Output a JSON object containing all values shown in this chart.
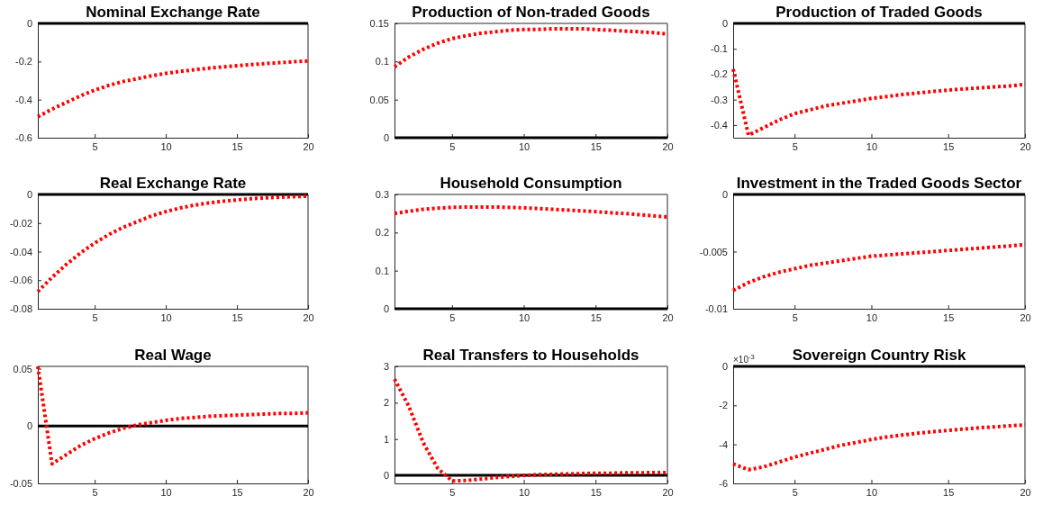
{
  "chart_data": [
    {
      "type": "line",
      "title": "Nominal Exchange Rate",
      "x": [
        1,
        2,
        3,
        4,
        5,
        6,
        7,
        8,
        9,
        10,
        11,
        12,
        13,
        14,
        15,
        16,
        17,
        18,
        19,
        20
      ],
      "xlim": [
        1,
        20
      ],
      "xticks": [
        5,
        10,
        15,
        20
      ],
      "ylim": [
        -0.6,
        0
      ],
      "yticks": [
        {
          "value": -0.6,
          "label": "-0.6"
        },
        {
          "value": -0.4,
          "label": "-0.4"
        },
        {
          "value": -0.2,
          "label": "-0.2"
        },
        0
      ],
      "grid": false,
      "marker": "none",
      "line_style": "dotted",
      "series": [
        {
          "color": "#ff0000",
          "values": [
            -0.49,
            -0.45,
            -0.415,
            -0.38,
            -0.35,
            -0.325,
            -0.305,
            -0.29,
            -0.275,
            -0.262,
            -0.252,
            -0.243,
            -0.235,
            -0.228,
            -0.222,
            -0.216,
            -0.211,
            -0.206,
            -0.201,
            -0.197
          ]
        }
      ],
      "ref_lines": [
        {
          "axis": "y",
          "value": 0,
          "color": "#000000",
          "line_style": "solid"
        }
      ]
    },
    {
      "type": "line",
      "title": "Production of Non-traded Goods",
      "x": [
        1,
        2,
        3,
        4,
        5,
        6,
        7,
        8,
        9,
        10,
        11,
        12,
        13,
        14,
        15,
        16,
        17,
        18,
        19,
        20
      ],
      "xlim": [
        1,
        20
      ],
      "xticks": [
        5,
        10,
        15,
        20
      ],
      "ylim": [
        0,
        0.15
      ],
      "yticks": [
        0,
        0.05,
        0.1,
        0.15
      ],
      "grid": false,
      "marker": "none",
      "line_style": "dotted",
      "series": [
        {
          "color": "#ff0000",
          "values": [
            0.093,
            0.106,
            0.116,
            0.124,
            0.13,
            0.134,
            0.137,
            0.139,
            0.141,
            0.142,
            0.142,
            0.143,
            0.143,
            0.143,
            0.142,
            0.141,
            0.14,
            0.139,
            0.138,
            0.136
          ]
        }
      ],
      "ref_lines": [
        {
          "axis": "y",
          "value": 0,
          "color": "#000000",
          "line_style": "solid"
        }
      ]
    },
    {
      "type": "line",
      "title": "Production of Traded Goods",
      "x": [
        1,
        2,
        3,
        4,
        5,
        6,
        7,
        8,
        9,
        10,
        11,
        12,
        13,
        14,
        15,
        16,
        17,
        18,
        19,
        20
      ],
      "xlim": [
        1,
        20
      ],
      "xticks": [
        5,
        10,
        15,
        20
      ],
      "ylim": [
        -0.45,
        0
      ],
      "yticks": [
        {
          "value": -0.4,
          "label": "-0.4"
        },
        {
          "value": -0.3,
          "label": "-0.3"
        },
        {
          "value": -0.2,
          "label": "-0.2"
        },
        {
          "value": -0.1,
          "label": "-0.1"
        },
        0
      ],
      "grid": false,
      "marker": "none",
      "line_style": "dotted",
      "series": [
        {
          "color": "#ff0000",
          "values": [
            -0.18,
            -0.44,
            -0.41,
            -0.38,
            -0.355,
            -0.34,
            -0.325,
            -0.315,
            -0.305,
            -0.295,
            -0.288,
            -0.28,
            -0.274,
            -0.268,
            -0.263,
            -0.258,
            -0.254,
            -0.25,
            -0.246,
            -0.24
          ]
        }
      ],
      "ref_lines": [
        {
          "axis": "y",
          "value": 0,
          "color": "#000000",
          "line_style": "solid"
        }
      ]
    },
    {
      "type": "line",
      "title": "Real Exchange Rate",
      "x": [
        1,
        2,
        3,
        4,
        5,
        6,
        7,
        8,
        9,
        10,
        11,
        12,
        13,
        14,
        15,
        16,
        17,
        18,
        19,
        20
      ],
      "xlim": [
        1,
        20
      ],
      "xticks": [
        5,
        10,
        15,
        20
      ],
      "ylim": [
        -0.08,
        0
      ],
      "yticks": [
        {
          "value": -0.08,
          "label": "-0.08"
        },
        {
          "value": -0.06,
          "label": "-0.06"
        },
        {
          "value": -0.04,
          "label": "-0.04"
        },
        {
          "value": -0.02,
          "label": "-0.02"
        },
        0
      ],
      "grid": false,
      "marker": "none",
      "line_style": "dotted",
      "series": [
        {
          "color": "#ff0000",
          "values": [
            -0.068,
            -0.058,
            -0.049,
            -0.041,
            -0.034,
            -0.028,
            -0.023,
            -0.019,
            -0.015,
            -0.012,
            -0.0095,
            -0.0075,
            -0.006,
            -0.0048,
            -0.0038,
            -0.003,
            -0.0024,
            -0.0019,
            -0.0015,
            -0.0012
          ]
        }
      ],
      "ref_lines": [
        {
          "axis": "y",
          "value": 0,
          "color": "#000000",
          "line_style": "solid"
        }
      ]
    },
    {
      "type": "line",
      "title": "Household Consumption",
      "x": [
        1,
        2,
        3,
        4,
        5,
        6,
        7,
        8,
        9,
        10,
        11,
        12,
        13,
        14,
        15,
        16,
        17,
        18,
        19,
        20
      ],
      "xlim": [
        1,
        20
      ],
      "xticks": [
        5,
        10,
        15,
        20
      ],
      "ylim": [
        0,
        0.3
      ],
      "yticks": [
        0,
        0.1,
        0.2,
        0.3
      ],
      "grid": false,
      "marker": "none",
      "line_style": "dotted",
      "series": [
        {
          "color": "#ff0000",
          "values": [
            0.25,
            0.256,
            0.261,
            0.264,
            0.266,
            0.267,
            0.267,
            0.267,
            0.266,
            0.265,
            0.263,
            0.261,
            0.259,
            0.257,
            0.255,
            0.252,
            0.25,
            0.247,
            0.244,
            0.241
          ]
        }
      ],
      "ref_lines": [
        {
          "axis": "y",
          "value": 0,
          "color": "#000000",
          "line_style": "solid"
        }
      ]
    },
    {
      "type": "line",
      "title": "Investment in the Traded Goods Sector",
      "x": [
        1,
        2,
        3,
        4,
        5,
        6,
        7,
        8,
        9,
        10,
        11,
        12,
        13,
        14,
        15,
        16,
        17,
        18,
        19,
        20
      ],
      "xlim": [
        1,
        20
      ],
      "xticks": [
        5,
        10,
        15,
        20
      ],
      "ylim": [
        -0.01,
        0
      ],
      "yticks": [
        {
          "value": -0.01,
          "label": "-0.01"
        },
        {
          "value": -0.005,
          "label": "-0.005"
        },
        0
      ],
      "grid": false,
      "marker": "none",
      "line_style": "dotted",
      "series": [
        {
          "color": "#ff0000",
          "values": [
            -0.0084,
            -0.0077,
            -0.0072,
            -0.0068,
            -0.0065,
            -0.0062,
            -0.006,
            -0.0058,
            -0.0056,
            -0.0054,
            -0.0053,
            -0.0052,
            -0.0051,
            -0.005,
            -0.0049,
            -0.0048,
            -0.0047,
            -0.0046,
            -0.0045,
            -0.0044
          ]
        }
      ],
      "ref_lines": [
        {
          "axis": "y",
          "value": 0,
          "color": "#000000",
          "line_style": "solid"
        }
      ]
    },
    {
      "type": "line",
      "title": "Real Wage",
      "x": [
        1,
        2,
        3,
        4,
        5,
        6,
        7,
        8,
        9,
        10,
        11,
        12,
        13,
        14,
        15,
        16,
        17,
        18,
        19,
        20
      ],
      "xlim": [
        1,
        20
      ],
      "xticks": [
        5,
        10,
        15,
        20
      ],
      "ylim": [
        -0.05,
        0.052
      ],
      "yticks": [
        {
          "value": -0.05,
          "label": "-0.05"
        },
        0,
        0.05
      ],
      "grid": false,
      "marker": "none",
      "line_style": "dotted",
      "series": [
        {
          "color": "#ff0000",
          "values": [
            0.052,
            -0.033,
            -0.025,
            -0.017,
            -0.011,
            -0.006,
            -0.002,
            0.001,
            0.003,
            0.005,
            0.0065,
            0.0075,
            0.0085,
            0.009,
            0.0095,
            0.01,
            0.0105,
            0.011,
            0.011,
            0.0115
          ]
        }
      ],
      "ref_lines": [
        {
          "axis": "y",
          "value": 0,
          "color": "#000000",
          "line_style": "solid"
        }
      ]
    },
    {
      "type": "line",
      "title": "Real Transfers to Households",
      "x": [
        1,
        2,
        3,
        4,
        5,
        6,
        7,
        8,
        9,
        10,
        11,
        12,
        13,
        14,
        15,
        16,
        17,
        18,
        19,
        20
      ],
      "xlim": [
        1,
        20
      ],
      "xticks": [
        5,
        10,
        15,
        20
      ],
      "ylim": [
        -0.22,
        3
      ],
      "yticks": [
        0,
        1,
        2,
        3
      ],
      "grid": false,
      "marker": "none",
      "line_style": "dotted",
      "series": [
        {
          "color": "#ff0000",
          "values": [
            2.65,
            1.9,
            0.9,
            0.2,
            -0.15,
            -0.14,
            -0.1,
            -0.06,
            -0.03,
            0,
            0.02,
            0.03,
            0.04,
            0.05,
            0.06,
            0.06,
            0.07,
            0.07,
            0.08,
            0.08
          ]
        }
      ],
      "ref_lines": [
        {
          "axis": "y",
          "value": 0,
          "color": "#000000",
          "line_style": "solid"
        }
      ]
    },
    {
      "type": "line",
      "title": "Sovereign Country Risk",
      "annotations": [
        "×10$^{-3}$"
      ],
      "x": [
        1,
        2,
        3,
        4,
        5,
        6,
        7,
        8,
        9,
        10,
        11,
        12,
        13,
        14,
        15,
        16,
        17,
        18,
        19,
        20
      ],
      "xlim": [
        1,
        20
      ],
      "xticks": [
        5,
        10,
        15,
        20
      ],
      "ylim": [
        -6,
        0
      ],
      "yticks": [
        -6,
        -4,
        -2,
        0
      ],
      "grid": false,
      "marker": "none",
      "line_style": "dotted",
      "series": [
        {
          "color": "#ff0000",
          "values": [
            -5.0,
            -5.3,
            -5.15,
            -4.9,
            -4.65,
            -4.45,
            -4.25,
            -4.05,
            -3.9,
            -3.75,
            -3.62,
            -3.52,
            -3.43,
            -3.35,
            -3.28,
            -3.21,
            -3.15,
            -3.1,
            -3.05,
            -3.0
          ]
        }
      ],
      "ref_lines": [
        {
          "axis": "y",
          "value": 0,
          "color": "#000000",
          "line_style": "solid"
        }
      ]
    }
  ]
}
